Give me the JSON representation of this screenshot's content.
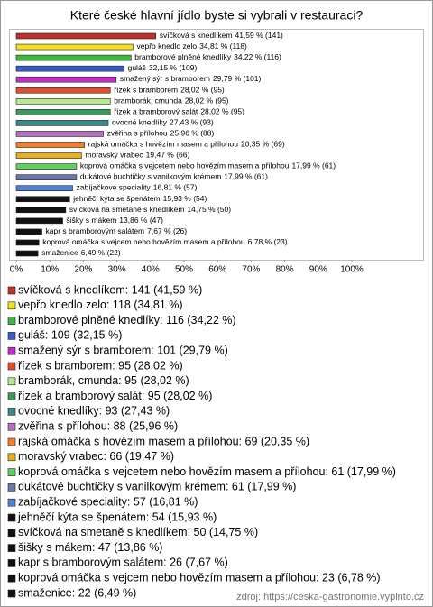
{
  "chart_data": {
    "type": "bar",
    "orientation": "horizontal",
    "title": "Které české hlavní jídlo byste si vybrali v restauraci?",
    "categories": [
      "svíčková s knedlíkem",
      "vepřo knedlo zelo",
      "bramborové plněné knedlíky",
      "guláš",
      "smažený sýr s bramborem",
      "řízek s bramborem",
      "bramborák, cmunda",
      "řízek a bramborový salát",
      "ovocné knedlíky",
      "zvěřina s přílohou",
      "rajská omáčka s hovězím masem a přílohou",
      "moravský vrabec",
      "koprová omáčka s vejcetem nebo hovězím masem a přílohou",
      "dukátové buchtičky s vanilkovým krémem",
      "zabíjačkové speciality",
      "jehněčí kýta se špenátem",
      "svíčková na smetaně s knedlíkem",
      "šišky s mákem",
      "kapr s bramborovým salátem",
      "koprová omáčka s vejcem nebo hovězím masem a přílohou",
      "smaženice"
    ],
    "values": [
      41.59,
      34.81,
      34.22,
      32.15,
      29.79,
      28.02,
      28.02,
      28.02,
      27.43,
      25.96,
      20.35,
      19.47,
      17.99,
      17.99,
      16.81,
      15.93,
      14.75,
      13.86,
      7.67,
      6.78,
      6.49
    ],
    "value_labels": [
      "41,59 % (141)",
      "34,81 % (118)",
      "34,22 % (116)",
      "32,15 % (109)",
      "29,79 % (101)",
      "28,02 % (95)",
      "28,02 % (95)",
      "28,02 % (95)",
      "27,43 % (93)",
      "25,96 % (88)",
      "20,35 % (69)",
      "19,47 % (66)",
      "17,99 % (61)",
      "17,99 % (61)",
      "16,81 % (57)",
      "15,93 % (54)",
      "14,75 % (50)",
      "13,86 % (47)",
      "7,67 % (26)",
      "6,78 % (23)",
      "6,49 % (22)"
    ],
    "colors": [
      "#c0302a",
      "#f2e21e",
      "#3cb83c",
      "#3a5cc8",
      "#c030c8",
      "#e0502a",
      "#b8e890",
      "#3a9a5a",
      "#3a8a8a",
      "#b870c0",
      "#f08030",
      "#e8b020",
      "#60d060",
      "#6a78a8",
      "#5080d0",
      "#111111",
      "#111111",
      "#111111",
      "#111111",
      "#111111",
      "#111111"
    ],
    "legend_labels": [
      "svíčková s knedlíkem: 141 (41,59 %)",
      "vepřo knedlo zelo: 118 (34,81 %)",
      "bramborové plněné knedlíky: 116 (34,22 %)",
      "guláš: 109 (32,15 %)",
      "smažený sýr s bramborem: 101 (29,79 %)",
      "řízek s bramborem: 95 (28,02 %)",
      "bramborák, cmunda: 95 (28,02 %)",
      "řízek a bramborový salát: 95 (28,02 %)",
      "ovocné knedlíky: 93 (27,43 %)",
      "zvěřina s přílohou: 88 (25,96 %)",
      "rajská omáčka s hovězím masem a přílohou: 69 (20,35 %)",
      "moravský vrabec: 66 (19,47 %)",
      "koprová omáčka s vejcetem nebo hovězím masem a přílohou: 61 (17,99 %)",
      "dukátové buchtičky s vanilkovým krémem: 61 (17,99 %)",
      "zabíjačkové speciality: 57 (16,81 %)",
      "jehněčí kýta se špenátem: 54 (15,93 %)",
      "svíčková na smetaně s knedlíkem: 50 (14,75 %)",
      "šišky s mákem: 47 (13,86 %)",
      "kapr s bramborovým salátem: 26 (7,67 %)",
      "koprová omáčka s vejcem nebo hovězím masem a přílohou: 23 (6,78 %)",
      "smaženice: 22 (6,49 %)"
    ],
    "xlim": [
      0,
      100
    ],
    "xticks": [
      {
        "value": 0,
        "label": "0%"
      },
      {
        "value": 10,
        "label": "10%"
      },
      {
        "value": 20,
        "label": "20%"
      },
      {
        "value": 30,
        "label": "30%"
      },
      {
        "value": 40,
        "label": "40%"
      },
      {
        "value": 50,
        "label": "50%"
      },
      {
        "value": 60,
        "label": "60%"
      },
      {
        "value": 70,
        "label": "70%"
      },
      {
        "value": 80,
        "label": "80%"
      },
      {
        "value": 90,
        "label": "90%"
      },
      {
        "value": 100,
        "label": "100%"
      }
    ],
    "source": "zdroj: https://ceska-gastronomie.vyplnto.cz"
  }
}
